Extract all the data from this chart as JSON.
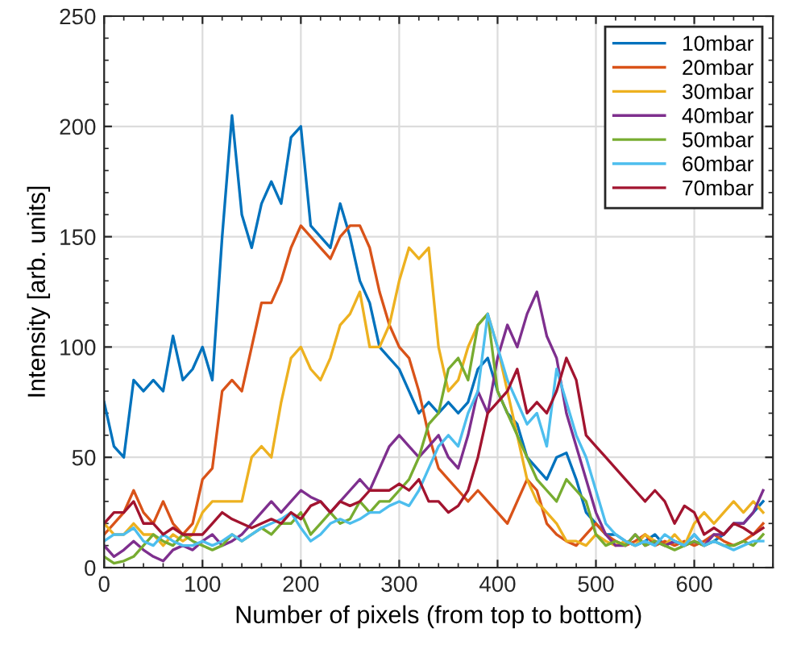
{
  "chart_data": {
    "type": "line",
    "xlabel": "Number of pixels (from top to bottom)",
    "ylabel": "Intensity [arb. units]",
    "x": [
      0,
      10,
      20,
      30,
      40,
      50,
      60,
      70,
      80,
      90,
      100,
      110,
      120,
      130,
      140,
      150,
      160,
      170,
      180,
      190,
      200,
      210,
      220,
      230,
      240,
      250,
      260,
      270,
      280,
      290,
      300,
      310,
      320,
      330,
      340,
      350,
      360,
      370,
      380,
      390,
      400,
      410,
      420,
      430,
      440,
      450,
      460,
      470,
      480,
      490,
      500,
      510,
      520,
      530,
      540,
      550,
      560,
      570,
      580,
      590,
      600,
      610,
      620,
      630,
      640,
      650,
      660,
      670
    ],
    "series": [
      {
        "name": "10mbar",
        "color": "#0072bd",
        "values": [
          75,
          55,
          50,
          85,
          80,
          85,
          80,
          105,
          85,
          90,
          100,
          85,
          150,
          205,
          160,
          145,
          165,
          175,
          165,
          195,
          200,
          155,
          150,
          145,
          165,
          150,
          130,
          120,
          100,
          95,
          90,
          80,
          70,
          75,
          70,
          75,
          70,
          75,
          90,
          95,
          80,
          70,
          65,
          50,
          45,
          40,
          50,
          52,
          40,
          25,
          20,
          15,
          15,
          12,
          10,
          12,
          15,
          10,
          12,
          10,
          15,
          10,
          12,
          15,
          20,
          20,
          25,
          30
        ]
      },
      {
        "name": "20mbar",
        "color": "#d95319",
        "values": [
          15,
          20,
          25,
          35,
          25,
          20,
          30,
          20,
          15,
          20,
          40,
          45,
          80,
          85,
          80,
          100,
          120,
          120,
          130,
          145,
          155,
          150,
          145,
          140,
          150,
          155,
          155,
          145,
          125,
          110,
          100,
          95,
          80,
          60,
          45,
          40,
          35,
          30,
          35,
          30,
          25,
          20,
          30,
          40,
          35,
          20,
          15,
          12,
          10,
          15,
          20,
          15,
          12,
          10,
          12,
          15,
          10,
          12,
          10,
          12,
          10,
          12,
          15,
          12,
          10,
          12,
          15,
          20
        ]
      },
      {
        "name": "30mbar",
        "color": "#edb120",
        "values": [
          20,
          15,
          15,
          20,
          15,
          15,
          10,
          15,
          12,
          15,
          25,
          30,
          30,
          30,
          30,
          50,
          55,
          50,
          75,
          95,
          100,
          90,
          85,
          95,
          110,
          115,
          125,
          100,
          100,
          110,
          130,
          145,
          140,
          145,
          100,
          80,
          85,
          100,
          110,
          115,
          100,
          80,
          60,
          40,
          30,
          25,
          20,
          12,
          12,
          10,
          15,
          12,
          10,
          12,
          10,
          15,
          12,
          10,
          15,
          10,
          20,
          25,
          20,
          25,
          30,
          25,
          30,
          25
        ]
      },
      {
        "name": "40mbar",
        "color": "#7e2f8e",
        "values": [
          10,
          5,
          8,
          12,
          8,
          5,
          3,
          8,
          10,
          8,
          12,
          15,
          10,
          12,
          15,
          20,
          25,
          30,
          25,
          30,
          35,
          32,
          30,
          25,
          30,
          35,
          40,
          35,
          45,
          55,
          60,
          55,
          50,
          55,
          60,
          50,
          45,
          60,
          80,
          70,
          95,
          110,
          100,
          115,
          125,
          105,
          95,
          70,
          55,
          40,
          25,
          15,
          10,
          10,
          15,
          10,
          12,
          10,
          12,
          10,
          12,
          10,
          15,
          15,
          20,
          20,
          25,
          35
        ]
      },
      {
        "name": "50mbar",
        "color": "#77ac30",
        "values": [
          5,
          2,
          3,
          5,
          10,
          15,
          12,
          10,
          15,
          12,
          10,
          8,
          10,
          15,
          12,
          15,
          18,
          15,
          20,
          20,
          25,
          15,
          20,
          25,
          20,
          22,
          30,
          25,
          30,
          30,
          35,
          40,
          50,
          65,
          70,
          90,
          95,
          85,
          110,
          115,
          80,
          70,
          60,
          50,
          40,
          35,
          30,
          40,
          35,
          30,
          15,
          10,
          12,
          10,
          15,
          10,
          12,
          10,
          8,
          10,
          12,
          10,
          12,
          10,
          10,
          12,
          10,
          15
        ]
      },
      {
        "name": "60mbar",
        "color": "#4dbeee",
        "values": [
          12,
          15,
          15,
          18,
          12,
          10,
          15,
          12,
          10,
          10,
          12,
          10,
          12,
          15,
          12,
          15,
          18,
          20,
          22,
          25,
          18,
          12,
          15,
          20,
          22,
          20,
          22,
          25,
          25,
          28,
          30,
          28,
          35,
          45,
          55,
          60,
          55,
          70,
          80,
          115,
          100,
          85,
          75,
          65,
          70,
          55,
          90,
          75,
          60,
          50,
          35,
          20,
          15,
          12,
          10,
          12,
          10,
          15,
          12,
          10,
          15,
          10,
          12,
          10,
          8,
          10,
          12,
          12
        ]
      },
      {
        "name": "70mbar",
        "color": "#a2142f",
        "values": [
          20,
          25,
          25,
          30,
          20,
          20,
          15,
          18,
          15,
          15,
          15,
          20,
          25,
          22,
          20,
          18,
          20,
          22,
          20,
          25,
          22,
          28,
          30,
          25,
          30,
          28,
          30,
          35,
          35,
          35,
          38,
          35,
          40,
          30,
          30,
          25,
          28,
          35,
          50,
          70,
          75,
          80,
          90,
          70,
          75,
          70,
          80,
          95,
          85,
          60,
          55,
          50,
          45,
          40,
          35,
          30,
          35,
          30,
          20,
          28,
          25,
          15,
          18,
          15,
          20,
          18,
          15,
          18
        ]
      }
    ],
    "xlim": [
      0,
      680
    ],
    "ylim": [
      0,
      250
    ],
    "xticks": [
      0,
      100,
      200,
      300,
      400,
      500,
      600
    ],
    "yticks": [
      0,
      50,
      100,
      150,
      200,
      250
    ],
    "grid": true,
    "legend": "top right",
    "marker": "none",
    "line_style": "solid"
  }
}
